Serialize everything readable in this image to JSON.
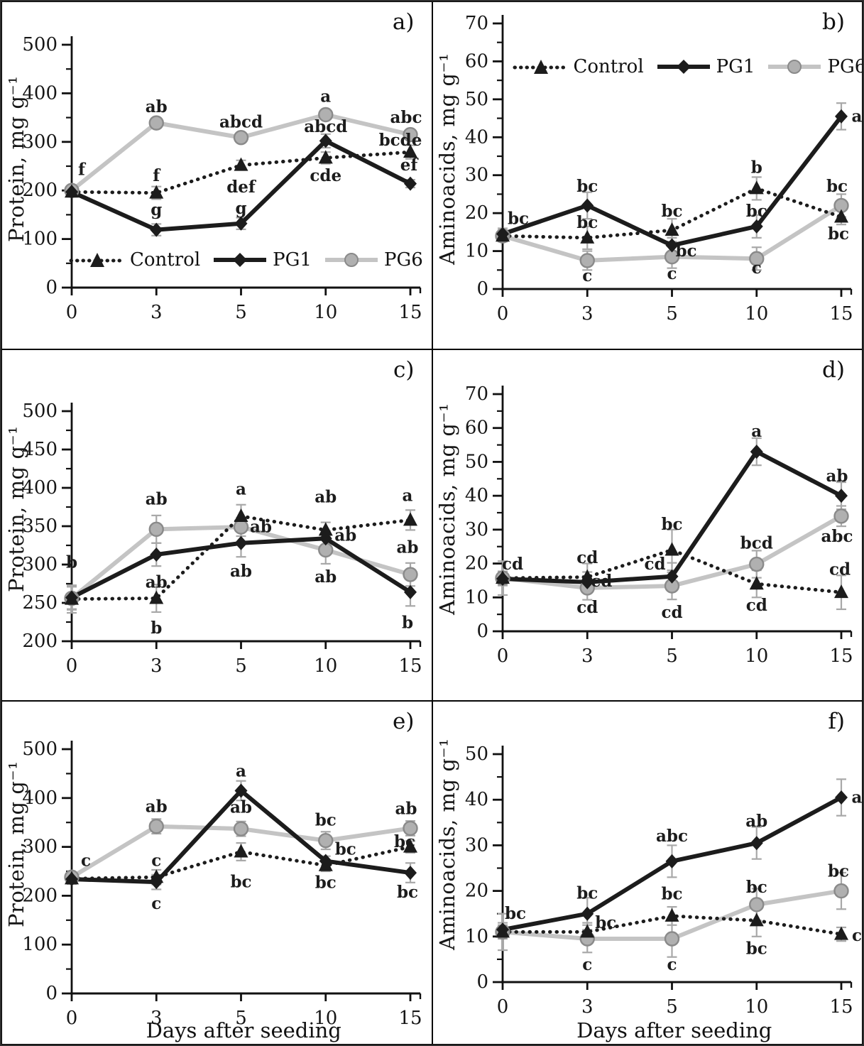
{
  "figure": {
    "legend_entries": [
      "Control",
      "PG1",
      "PG6"
    ],
    "xlabel_shared": "Days after seeding",
    "colors": {
      "dark_series": "#1c1c1c",
      "light_series_line": "#c4c4c4",
      "light_marker_fill": "#b0b0b0",
      "light_marker_stroke": "#8a8a8a",
      "error_bar": "#a8a8a8",
      "axis": "#111111",
      "text": "#1a1a1a",
      "frame": "#000000",
      "background": "#ffffff"
    }
  },
  "chart_data": [
    {
      "id": "a",
      "panel_label": "a)",
      "type": "line",
      "ylabel": "Protein, mg g⁻¹",
      "xlabel": "",
      "categories": [
        0,
        3,
        5,
        10,
        15
      ],
      "ylim": [
        0,
        500
      ],
      "yticks": [
        0,
        100,
        200,
        300,
        400,
        500
      ],
      "yminor_step": 50,
      "legend_position": "inside-bottom",
      "grid": "off",
      "series": [
        {
          "name": "Control",
          "marker": "triangle",
          "line_style": "dotted",
          "line_color": "#1c1c1c",
          "marker_fill": "#1c1c1c",
          "marker_stroke": "#1c1c1c",
          "values": [
            197,
            195,
            252,
            267,
            279
          ],
          "errors": [
            10,
            13,
            10,
            12,
            14
          ]
        },
        {
          "name": "PG1",
          "marker": "diamond",
          "line_style": "solid",
          "line_color": "#1c1c1c",
          "marker_fill": "#1c1c1c",
          "marker_stroke": "#1c1c1c",
          "values": [
            197,
            119,
            132,
            302,
            214
          ],
          "errors": [
            8,
            12,
            12,
            14,
            8
          ]
        },
        {
          "name": "PG6",
          "marker": "circle",
          "line_style": "solid",
          "line_color": "#c4c4c4",
          "marker_fill": "#b0b0b0",
          "marker_stroke": "#8a8a8a",
          "values": [
            200,
            339,
            309,
            356,
            315
          ],
          "errors": [
            8,
            10,
            8,
            10,
            10
          ]
        }
      ],
      "annotations": [
        {
          "x": 0,
          "y": 243,
          "text": "f",
          "dx": 14
        },
        {
          "x": 3,
          "y": 372,
          "text": "ab"
        },
        {
          "x": 3,
          "y": 230,
          "text": "f"
        },
        {
          "x": 3,
          "y": 160,
          "text": "g"
        },
        {
          "x": 5,
          "y": 341,
          "text": "abcd"
        },
        {
          "x": 5,
          "y": 207,
          "text": "def"
        },
        {
          "x": 5,
          "y": 163,
          "text": "g"
        },
        {
          "x": 10,
          "y": 393,
          "text": "a"
        },
        {
          "x": 10,
          "y": 331,
          "text": "abcd"
        },
        {
          "x": 10,
          "y": 230,
          "text": "cde"
        },
        {
          "x": 15,
          "y": 350,
          "text": "abc",
          "dx": -6
        },
        {
          "x": 15,
          "y": 303,
          "text": "bcde",
          "dx": -14
        },
        {
          "x": 15,
          "y": 252,
          "text": "ef",
          "dx": -2
        }
      ]
    },
    {
      "id": "b",
      "panel_label": "b)",
      "type": "line",
      "ylabel": "Aminoacids, mg g⁻¹",
      "xlabel": "",
      "categories": [
        0,
        3,
        5,
        10,
        15
      ],
      "ylim": [
        0,
        70
      ],
      "yticks": [
        0,
        10,
        20,
        30,
        40,
        50,
        60,
        70
      ],
      "yminor_step": 5,
      "legend_position": "inside-top",
      "grid": "off",
      "series": [
        {
          "name": "Control",
          "marker": "triangle",
          "line_style": "dotted",
          "line_color": "#1c1c1c",
          "marker_fill": "#1c1c1c",
          "marker_stroke": "#1c1c1c",
          "values": [
            14,
            13.5,
            15.5,
            26.5,
            19
          ],
          "errors": [
            1.5,
            3,
            3,
            3,
            2
          ]
        },
        {
          "name": "PG1",
          "marker": "diamond",
          "line_style": "solid",
          "line_color": "#1c1c1c",
          "marker_fill": "#1c1c1c",
          "marker_stroke": "#1c1c1c",
          "values": [
            14.5,
            22,
            11.5,
            16.5,
            45.5
          ],
          "errors": [
            1.5,
            3.5,
            2,
            3,
            3.5
          ]
        },
        {
          "name": "PG6",
          "marker": "circle",
          "line_style": "solid",
          "line_color": "#c4c4c4",
          "marker_fill": "#b0b0b0",
          "marker_stroke": "#8a8a8a",
          "values": [
            14,
            7.5,
            8.5,
            8,
            22
          ],
          "errors": [
            1.5,
            2.5,
            3,
            3,
            3
          ]
        }
      ],
      "annotations": [
        {
          "x": 0,
          "y": 18.5,
          "text": "bc",
          "dx": 22
        },
        {
          "x": 3,
          "y": 27,
          "text": "bc"
        },
        {
          "x": 3,
          "y": 17.5,
          "text": "bc"
        },
        {
          "x": 3,
          "y": 3.5,
          "text": "c"
        },
        {
          "x": 5,
          "y": 20.5,
          "text": "bc"
        },
        {
          "x": 5,
          "y": 10,
          "text": "bc",
          "dx": 20
        },
        {
          "x": 5,
          "y": 4,
          "text": "c"
        },
        {
          "x": 10,
          "y": 32,
          "text": "b"
        },
        {
          "x": 10,
          "y": 20.5,
          "text": "bc"
        },
        {
          "x": 10,
          "y": 5.5,
          "text": "c"
        },
        {
          "x": 15,
          "y": 45.5,
          "text": "a",
          "dx": 22
        },
        {
          "x": 15,
          "y": 27,
          "text": "bc",
          "dx": -6
        },
        {
          "x": 15,
          "y": 14.5,
          "text": "bc",
          "dx": -4
        }
      ]
    },
    {
      "id": "c",
      "panel_label": "c)",
      "type": "line",
      "ylabel": "Protein, mg g⁻¹",
      "xlabel": "",
      "categories": [
        0,
        3,
        5,
        10,
        15
      ],
      "ylim": [
        200,
        500
      ],
      "yticks": [
        200,
        250,
        300,
        350,
        400,
        450,
        500
      ],
      "yminor_step": 25,
      "legend_position": "none",
      "grid": "off",
      "series": [
        {
          "name": "Control",
          "marker": "triangle",
          "line_style": "dotted",
          "line_color": "#1c1c1c",
          "marker_fill": "#1c1c1c",
          "marker_stroke": "#1c1c1c",
          "values": [
            255,
            256,
            363,
            345,
            358
          ],
          "errors": [
            18,
            18,
            15,
            10,
            13
          ]
        },
        {
          "name": "PG1",
          "marker": "diamond",
          "line_style": "solid",
          "line_color": "#1c1c1c",
          "marker_fill": "#1c1c1c",
          "marker_stroke": "#1c1c1c",
          "values": [
            257,
            313,
            328,
            334,
            264
          ],
          "errors": [
            15,
            15,
            18,
            10,
            18
          ]
        },
        {
          "name": "PG6",
          "marker": "circle",
          "line_style": "solid",
          "line_color": "#c4c4c4",
          "marker_fill": "#b0b0b0",
          "marker_stroke": "#8a8a8a",
          "values": [
            256,
            346,
            349,
            319,
            287
          ],
          "errors": [
            15,
            18,
            12,
            18,
            15
          ]
        }
      ],
      "annotations": [
        {
          "x": 0,
          "y": 303,
          "text": "b"
        },
        {
          "x": 3,
          "y": 385,
          "text": "ab"
        },
        {
          "x": 3,
          "y": 277,
          "text": "ab"
        },
        {
          "x": 3,
          "y": 217,
          "text": "b"
        },
        {
          "x": 5,
          "y": 398,
          "text": "a"
        },
        {
          "x": 5,
          "y": 349,
          "text": "ab",
          "dx": 28
        },
        {
          "x": 5,
          "y": 291,
          "text": "ab"
        },
        {
          "x": 10,
          "y": 388,
          "text": "ab"
        },
        {
          "x": 10,
          "y": 338,
          "text": "ab",
          "dx": 28
        },
        {
          "x": 10,
          "y": 284,
          "text": "ab"
        },
        {
          "x": 15,
          "y": 390,
          "text": "a",
          "dx": -4
        },
        {
          "x": 15,
          "y": 322,
          "text": "ab",
          "dx": -4
        },
        {
          "x": 15,
          "y": 224,
          "text": "b",
          "dx": -4
        }
      ]
    },
    {
      "id": "d",
      "panel_label": "d)",
      "type": "line",
      "ylabel": "Aminoacids, mg g⁻¹",
      "xlabel": "",
      "categories": [
        0,
        3,
        5,
        10,
        15
      ],
      "ylim": [
        0,
        70
      ],
      "yticks": [
        0,
        10,
        20,
        30,
        40,
        50,
        60,
        70
      ],
      "yminor_step": 5,
      "legend_position": "none",
      "grid": "off",
      "series": [
        {
          "name": "Control",
          "marker": "triangle",
          "line_style": "dotted",
          "line_color": "#1c1c1c",
          "marker_fill": "#1c1c1c",
          "marker_stroke": "#1c1c1c",
          "values": [
            15.7,
            16,
            24,
            14,
            11.5
          ],
          "errors": [
            5,
            4,
            6,
            4,
            5
          ]
        },
        {
          "name": "PG1",
          "marker": "diamond",
          "line_style": "solid",
          "line_color": "#1c1c1c",
          "marker_fill": "#1c1c1c",
          "marker_stroke": "#1c1c1c",
          "values": [
            15.5,
            14.5,
            16.2,
            53,
            40
          ],
          "errors": [
            2,
            3,
            4,
            4,
            4
          ]
        },
        {
          "name": "PG6",
          "marker": "circle",
          "line_style": "solid",
          "line_color": "#c4c4c4",
          "marker_fill": "#b0b0b0",
          "marker_stroke": "#8a8a8a",
          "values": [
            15.7,
            12.8,
            13.4,
            19.8,
            34
          ],
          "errors": [
            2,
            3.5,
            4,
            4,
            3
          ]
        }
      ],
      "annotations": [
        {
          "x": 0,
          "y": 19.8,
          "text": "cd",
          "dx": 14
        },
        {
          "x": 3,
          "y": 21.7,
          "text": "cd"
        },
        {
          "x": 3,
          "y": 14.8,
          "text": "cd",
          "dx": 20
        },
        {
          "x": 3,
          "y": 7,
          "text": "cd"
        },
        {
          "x": 5,
          "y": 31.5,
          "text": "bc"
        },
        {
          "x": 5,
          "y": 19.8,
          "text": "cd",
          "dx": -24
        },
        {
          "x": 5,
          "y": 5.6,
          "text": "cd"
        },
        {
          "x": 10,
          "y": 59,
          "text": "a"
        },
        {
          "x": 10,
          "y": 26,
          "text": "bcd"
        },
        {
          "x": 10,
          "y": 7.6,
          "text": "cd"
        },
        {
          "x": 15,
          "y": 45.8,
          "text": "ab",
          "dx": -6
        },
        {
          "x": 15,
          "y": 28,
          "text": "abc",
          "dx": -6
        },
        {
          "x": 15,
          "y": 18.2,
          "text": "cd",
          "dx": -2
        }
      ]
    },
    {
      "id": "e",
      "panel_label": "e)",
      "type": "line",
      "ylabel": "Protein, mg g⁻¹",
      "xlabel": "Days after seeding",
      "categories": [
        0,
        3,
        5,
        10,
        15
      ],
      "ylim": [
        0,
        500
      ],
      "yticks": [
        0,
        100,
        200,
        300,
        400,
        500
      ],
      "yminor_step": 50,
      "legend_position": "none",
      "grid": "off",
      "series": [
        {
          "name": "Control",
          "marker": "triangle",
          "line_style": "dotted",
          "line_color": "#1c1c1c",
          "marker_fill": "#1c1c1c",
          "marker_stroke": "#1c1c1c",
          "values": [
            235,
            238,
            290,
            262,
            300
          ],
          "errors": [
            10,
            15,
            18,
            12,
            12
          ]
        },
        {
          "name": "PG1",
          "marker": "diamond",
          "line_style": "solid",
          "line_color": "#1c1c1c",
          "marker_fill": "#1c1c1c",
          "marker_stroke": "#1c1c1c",
          "values": [
            234,
            228,
            415,
            271,
            247
          ],
          "errors": [
            10,
            15,
            20,
            10,
            20
          ]
        },
        {
          "name": "PG6",
          "marker": "circle",
          "line_style": "solid",
          "line_color": "#c4c4c4",
          "marker_fill": "#b0b0b0",
          "marker_stroke": "#8a8a8a",
          "values": [
            238,
            342,
            337,
            313,
            338
          ],
          "errors": [
            10,
            15,
            15,
            18,
            15
          ]
        }
      ],
      "annotations": [
        {
          "x": 0,
          "y": 272,
          "text": "c",
          "dx": 20
        },
        {
          "x": 3,
          "y": 382,
          "text": "ab"
        },
        {
          "x": 3,
          "y": 272,
          "text": "c"
        },
        {
          "x": 3,
          "y": 184,
          "text": "c"
        },
        {
          "x": 5,
          "y": 455,
          "text": "a"
        },
        {
          "x": 5,
          "y": 381,
          "text": "ab"
        },
        {
          "x": 5,
          "y": 228,
          "text": "bc"
        },
        {
          "x": 10,
          "y": 355,
          "text": "bc"
        },
        {
          "x": 10,
          "y": 295,
          "text": "bc",
          "dx": 28
        },
        {
          "x": 10,
          "y": 227,
          "text": "bc"
        },
        {
          "x": 15,
          "y": 378,
          "text": "ab",
          "dx": -6
        },
        {
          "x": 15,
          "y": 310,
          "text": "bc",
          "dx": -8
        },
        {
          "x": 15,
          "y": 207,
          "text": "bc",
          "dx": -4
        }
      ]
    },
    {
      "id": "f",
      "panel_label": "f)",
      "type": "line",
      "ylabel": "Aminoacids, mg g⁻¹",
      "xlabel": "Days after seeding",
      "categories": [
        0,
        3,
        5,
        10,
        15
      ],
      "ylim": [
        0,
        50
      ],
      "yticks": [
        0,
        10,
        20,
        30,
        40,
        50
      ],
      "yminor_step": 5,
      "legend_position": "none",
      "grid": "off",
      "series": [
        {
          "name": "Control",
          "marker": "triangle",
          "line_style": "dotted",
          "line_color": "#1c1c1c",
          "marker_fill": "#1c1c1c",
          "marker_stroke": "#1c1c1c",
          "values": [
            11,
            11,
            14.5,
            13.5,
            10.5
          ],
          "errors": [
            4,
            2,
            2,
            3.5,
            1.5
          ]
        },
        {
          "name": "PG1",
          "marker": "diamond",
          "line_style": "solid",
          "line_color": "#1c1c1c",
          "marker_fill": "#1c1c1c",
          "marker_stroke": "#1c1c1c",
          "values": [
            11.5,
            15,
            26.5,
            30.5,
            40.5
          ],
          "errors": [
            1.5,
            3.5,
            3.5,
            3.5,
            4
          ]
        },
        {
          "name": "PG6",
          "marker": "circle",
          "line_style": "solid",
          "line_color": "#c4c4c4",
          "marker_fill": "#b0b0b0",
          "marker_stroke": "#8a8a8a",
          "values": [
            11,
            9.5,
            9.5,
            17,
            20
          ],
          "errors": [
            1.5,
            3,
            4,
            3.5,
            4
          ]
        }
      ],
      "annotations": [
        {
          "x": 0,
          "y": 15,
          "text": "bc",
          "dx": 18
        },
        {
          "x": 3,
          "y": 19.5,
          "text": "bc"
        },
        {
          "x": 3,
          "y": 13,
          "text": "bc",
          "dx": 26
        },
        {
          "x": 3,
          "y": 3.8,
          "text": "c"
        },
        {
          "x": 5,
          "y": 32,
          "text": "abc"
        },
        {
          "x": 5,
          "y": 19.3,
          "text": "bc"
        },
        {
          "x": 5,
          "y": 3.8,
          "text": "c"
        },
        {
          "x": 10,
          "y": 35.3,
          "text": "ab"
        },
        {
          "x": 10,
          "y": 20.8,
          "text": "bc"
        },
        {
          "x": 10,
          "y": 7.3,
          "text": "bc"
        },
        {
          "x": 15,
          "y": 40.5,
          "text": "a",
          "dx": 22
        },
        {
          "x": 15,
          "y": 24.3,
          "text": "bc",
          "dx": -4
        },
        {
          "x": 15,
          "y": 10.2,
          "text": "c",
          "dx": 22
        }
      ]
    }
  ]
}
